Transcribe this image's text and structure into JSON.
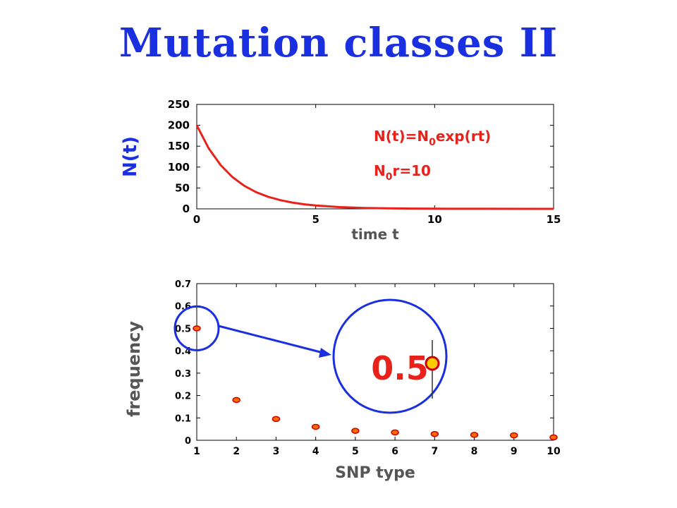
{
  "slide": {
    "title": "Mutation classes II"
  },
  "colors": {
    "title": "#1a2fe0",
    "curve": "#e8221b",
    "formula": "#e8221b",
    "axis": "#000000",
    "axis_label_blue": "#1a2fe0",
    "axis_label_gray": "#555555",
    "marker_fill": "#ff6a00",
    "marker_edge": "#cc0000",
    "highlight": "#1a2fe0",
    "zoom_marker": "#ffcc00"
  },
  "chart_data": [
    {
      "type": "line",
      "xlabel": "time t",
      "ylabel": "N(t)",
      "xlim": [
        0,
        15
      ],
      "ylim": [
        0,
        250
      ],
      "xticks": [
        "0",
        "5",
        "10",
        "15"
      ],
      "yticks": [
        "0",
        "50",
        "100",
        "150",
        "200",
        "250"
      ],
      "annotation_formula_main": "N(t)=N",
      "annotation_formula_sub": "0",
      "annotation_formula_tail": "exp(rt)",
      "annotation_param_main": "N",
      "annotation_param_sub": "0",
      "annotation_param_tail": "r=10",
      "series": [
        {
          "x": [
            0,
            0.5,
            1,
            1.5,
            2,
            2.5,
            3,
            3.5,
            4,
            4.5,
            5,
            6,
            7,
            8,
            9,
            10,
            12,
            15
          ],
          "y": [
            200,
            144.9,
            105,
            76,
            55.1,
            39.9,
            28.9,
            20.9,
            15.2,
            11,
            8,
            4.2,
            2.2,
            1.1,
            0.6,
            0.3,
            0.1,
            0
          ]
        }
      ]
    },
    {
      "type": "scatter",
      "xlabel": "SNP type",
      "ylabel": "frequency",
      "xlim": [
        1,
        10
      ],
      "ylim": [
        0,
        0.7
      ],
      "xticks": [
        "1",
        "2",
        "3",
        "4",
        "5",
        "6",
        "7",
        "8",
        "9",
        "10"
      ],
      "yticks": [
        "0",
        "0.1",
        "0.2",
        "0.3",
        "0.4",
        "0.5",
        "0.6",
        "0.7"
      ],
      "x": [
        1,
        2,
        3,
        4,
        5,
        6,
        7,
        8,
        9,
        10
      ],
      "y": [
        0.5,
        0.18,
        0.095,
        0.06,
        0.042,
        0.035,
        0.028,
        0.024,
        0.022,
        0.013
      ],
      "zoom_label": "0.5"
    }
  ]
}
